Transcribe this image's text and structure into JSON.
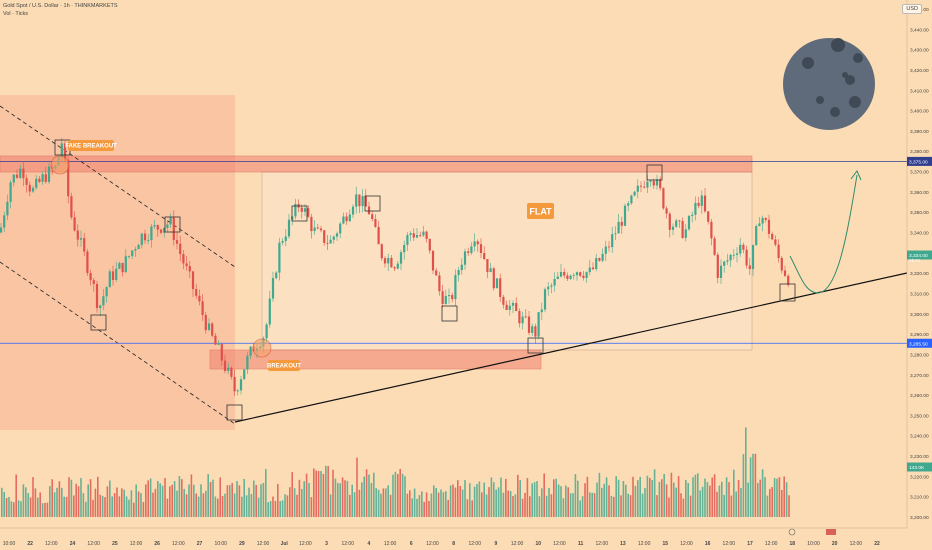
{
  "header": {
    "symbol_line": "Gold Spot / U.S. Dollar · 1h · THINKMARKETS",
    "vol_line": "Vol · Ticks",
    "currency": "USD"
  },
  "colors": {
    "background": "#fcdcb5",
    "bull": "#3fa88e",
    "bear": "#e0504a",
    "zone_red": "#f08070",
    "flat_box": "#fbe3c4",
    "resistance_line": "#2f3e8f",
    "support_line": "#2962ff",
    "label_orange": "#f59a3c",
    "moon": "#5f6b7a"
  },
  "annotations": {
    "fake_breakout": "FAKE BREAKOUT",
    "breakout": "BREAKOUT",
    "flat": "FLAT"
  },
  "price_tags": {
    "resistance": "3,375.00",
    "current_1": "3,334.00",
    "current_2": "15:01",
    "support": "3,285.50",
    "volume": "143.0K"
  },
  "chart_data": {
    "type": "candlestick",
    "price_axis": {
      "ticks": [
        3450,
        3440,
        3430,
        3420,
        3410,
        3400,
        3390,
        3380,
        3370,
        3360,
        3350,
        3340,
        3330,
        3320,
        3310,
        3300,
        3290,
        3280,
        3270,
        3260,
        3250,
        3240,
        3230,
        3220,
        3210,
        3200
      ],
      "labels": [
        "3,450.00",
        "3,440.00",
        "3,430.00",
        "3,420.00",
        "3,410.00",
        "3,400.00",
        "3,390.00",
        "3,380.00",
        "3,370.00",
        "3,360.00",
        "3,350.00",
        "3,340.00",
        "3,330.00",
        "3,320.00",
        "3,310.00",
        "3,300.00",
        "3,290.00",
        "3,280.00",
        "3,270.00",
        "3,260.00",
        "3,250.00",
        "3,240.00",
        "3,230.00",
        "3,220.00",
        "3,210.00",
        "3,200.00"
      ]
    },
    "time_axis": {
      "labels": [
        "10:00",
        "22",
        "12:00",
        "24",
        "12:00",
        "25",
        "12:00",
        "26",
        "12:00",
        "27",
        "10:00",
        "29",
        "12:00",
        "Jul",
        "12:00",
        "3",
        "12:00",
        "4",
        "12:00",
        "6",
        "12:00",
        "8",
        "12:00",
        "9",
        "12:00",
        "10",
        "12:00",
        "11",
        "12:00",
        "13",
        "12:00",
        "15",
        "12:00",
        "16",
        "12:00",
        "17",
        "12:00",
        "18",
        "10:00",
        "20",
        "12:00",
        "22"
      ]
    },
    "key_levels": {
      "resistance": 3375,
      "support": 3285.5
    },
    "anchor_prices": [
      [
        0,
        3340
      ],
      [
        10,
        3365
      ],
      [
        22,
        3372
      ],
      [
        32,
        3360
      ],
      [
        45,
        3368
      ],
      [
        56,
        3372
      ],
      [
        62,
        3385
      ],
      [
        70,
        3350
      ],
      [
        80,
        3335
      ],
      [
        90,
        3320
      ],
      [
        99,
        3303
      ],
      [
        110,
        3318
      ],
      [
        125,
        3325
      ],
      [
        140,
        3338
      ],
      [
        155,
        3342
      ],
      [
        170,
        3345
      ],
      [
        180,
        3330
      ],
      [
        195,
        3310
      ],
      [
        210,
        3290
      ],
      [
        220,
        3280
      ],
      [
        235,
        3262
      ],
      [
        245,
        3275
      ],
      [
        255,
        3285
      ],
      [
        265,
        3290
      ],
      [
        280,
        3335
      ],
      [
        300,
        3355
      ],
      [
        315,
        3340
      ],
      [
        330,
        3335
      ],
      [
        345,
        3348
      ],
      [
        355,
        3358
      ],
      [
        370,
        3350
      ],
      [
        380,
        3330
      ],
      [
        395,
        3325
      ],
      [
        410,
        3340
      ],
      [
        425,
        3338
      ],
      [
        440,
        3310
      ],
      [
        450,
        3305
      ],
      [
        460,
        3325
      ],
      [
        475,
        3340
      ],
      [
        490,
        3320
      ],
      [
        505,
        3306
      ],
      [
        520,
        3298
      ],
      [
        535,
        3290
      ],
      [
        545,
        3310
      ],
      [
        560,
        3318
      ],
      [
        575,
        3322
      ],
      [
        590,
        3320
      ],
      [
        605,
        3330
      ],
      [
        620,
        3345
      ],
      [
        635,
        3358
      ],
      [
        650,
        3370
      ],
      [
        660,
        3360
      ],
      [
        670,
        3345
      ],
      [
        685,
        3340
      ],
      [
        700,
        3358
      ],
      [
        710,
        3340
      ],
      [
        718,
        3320
      ],
      [
        730,
        3328
      ],
      [
        740,
        3335
      ],
      [
        750,
        3322
      ],
      [
        760,
        3350
      ],
      [
        770,
        3340
      ],
      [
        780,
        3325
      ],
      [
        788,
        3318
      ]
    ],
    "volume_profile": [
      0.45,
      0.4,
      0.55,
      0.5,
      0.6,
      0.45,
      0.5,
      0.55,
      0.48,
      0.52,
      0.5,
      0.45,
      0.6,
      0.7,
      0.55,
      0.58,
      0.62,
      0.5,
      0.48,
      0.55,
      0.6,
      0.56,
      0.58,
      0.52,
      0.55,
      0.6,
      0.62,
      0.65,
      0.6,
      0.58,
      0.7,
      0.9,
      0.6
    ]
  }
}
